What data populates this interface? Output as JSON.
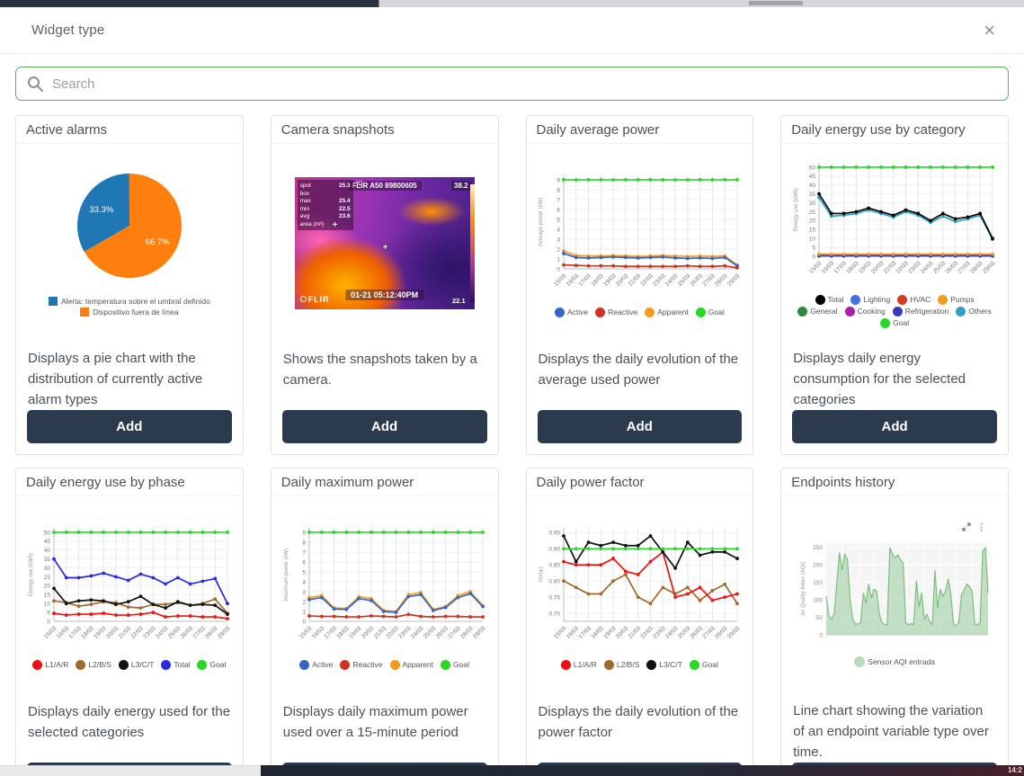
{
  "modal": {
    "title": "Widget type",
    "close_glyph": "×"
  },
  "search": {
    "placeholder": "Search"
  },
  "background": {
    "clock": "14:2"
  },
  "x_dates": [
    "15/03",
    "16/03",
    "17/03",
    "18/03",
    "19/03",
    "20/03",
    "21/03",
    "22/03",
    "23/03",
    "24/03",
    "25/03",
    "26/03",
    "27/03",
    "28/03",
    "29/03"
  ],
  "cards": [
    {
      "title": "Active alarms",
      "description": "Displays a pie chart with the distribution of currently active alarm types",
      "add_label": "Add",
      "chart": {
        "type": "pie",
        "rotation_deg": 240,
        "slices": [
          {
            "label": "Alerta: temperatura sobre el umbral definido",
            "value": 33.3,
            "pct_label": "33.3%",
            "color": "#1f77b4"
          },
          {
            "label": "Dispositivo fuera de línea",
            "value": 66.7,
            "pct_label": "66.7%",
            "color": "#ff7f0e"
          }
        ]
      }
    },
    {
      "title": "Camera snapshots",
      "description": "Shows the snapshots taken by a camera.",
      "add_label": "Add",
      "camera": {
        "header": "FLIR A50 89800605",
        "unit": "°C",
        "temp_top_right": "38.2",
        "temp_bottom_right": "22.1",
        "timestamp": "01-21 05:12:40PM",
        "brand": "FLIR",
        "panel": [
          [
            "spot",
            "25.3"
          ],
          [
            "box",
            ""
          ],
          [
            "max",
            "25.4"
          ],
          [
            "min",
            "22.5"
          ],
          [
            "avg",
            "23.6"
          ],
          [
            "area (m²)",
            ""
          ]
        ]
      }
    },
    {
      "title": "Daily average power",
      "description": "Displays the daily evolution of the average used power",
      "add_label": "Add",
      "chart": {
        "type": "line",
        "ylabel": "Average power (kW)",
        "ylim": [
          0,
          9.45
        ],
        "yticks": [
          0,
          1,
          2,
          3,
          4,
          5,
          6,
          7,
          8,
          9
        ],
        "ydec": 0,
        "series": [
          {
            "name": "Apparent",
            "color": "#f39c1f",
            "values": [
              1.8,
              1.35,
              1.3,
              1.3,
              1.35,
              1.3,
              1.25,
              1.3,
              1.35,
              1.3,
              1.25,
              1.3,
              1.25,
              1.3,
              0.4
            ]
          },
          {
            "name": "Active",
            "color": "#3465cd",
            "values": [
              1.55,
              1.15,
              1.1,
              1.15,
              1.2,
              1.15,
              1.1,
              1.15,
              1.2,
              1.1,
              1.05,
              1.1,
              1.05,
              1.15,
              0.3
            ]
          },
          {
            "name": "Reactive",
            "color": "#d0321e",
            "values": [
              0.4,
              0.35,
              0.3,
              0.3,
              0.3,
              0.25,
              0.25,
              0.25,
              0.25,
              0.25,
              0.3,
              0.25,
              0.25,
              0.3,
              0.1
            ]
          },
          {
            "name": "Goal",
            "color": "#28d828",
            "values": [
              9,
              9,
              9,
              9,
              9,
              9,
              9,
              9,
              9,
              9,
              9,
              9,
              9,
              9,
              9
            ]
          }
        ],
        "legend_order": [
          "Active",
          "Reactive",
          "Apparent",
          "Goal"
        ]
      }
    },
    {
      "title": "Daily energy use by category",
      "description": "Displays daily energy consumption for the selected categories",
      "add_label": "Add",
      "chart": {
        "type": "line",
        "ylabel": "Energy use (kWh)",
        "ylim": [
          0,
          52.5
        ],
        "yticks": [
          0,
          5,
          10,
          15,
          20,
          25,
          30,
          35,
          40,
          45,
          50
        ],
        "ydec": 0,
        "series": [
          {
            "name": "Cooking",
            "color": "#aa1faa",
            "values": [
              0.1,
              0.1,
              0.1,
              0.1,
              0.1,
              0.1,
              0.1,
              0.1,
              0.1,
              0.1,
              0.1,
              0.1,
              0.1,
              0.1,
              0.1
            ]
          },
          {
            "name": "General",
            "color": "#2c8a3c",
            "values": [
              0.15,
              0.15,
              0.15,
              0.15,
              0.15,
              0.15,
              0.15,
              0.15,
              0.15,
              0.15,
              0.15,
              0.15,
              0.15,
              0.15,
              0.15
            ]
          },
          {
            "name": "HVAC",
            "color": "#d93a20",
            "values": [
              0.2,
              0.2,
              0.2,
              0.2,
              0.2,
              0.2,
              0.2,
              0.2,
              0.2,
              0.2,
              0.2,
              0.2,
              0.2,
              0.2,
              0.2
            ]
          },
          {
            "name": "Lighting",
            "color": "#4472e0",
            "values": [
              0.3,
              0.3,
              0.3,
              0.3,
              0.3,
              0.3,
              0.3,
              0.3,
              0.3,
              0.3,
              0.3,
              0.3,
              0.3,
              0.3,
              0.3
            ]
          },
          {
            "name": "Refrigeration",
            "color": "#3a3ab8",
            "values": [
              0.5,
              0.5,
              0.5,
              0.5,
              0.5,
              0.5,
              0.5,
              0.5,
              0.5,
              0.5,
              0.5,
              0.5,
              0.5,
              0.5,
              0.5
            ]
          },
          {
            "name": "Pumps",
            "color": "#f39c1f",
            "values": [
              1.2,
              1.2,
              1.2,
              1.2,
              1.2,
              1.2,
              1.2,
              1.2,
              1.2,
              1.2,
              1.2,
              1.2,
              1.2,
              1.2,
              1.2
            ]
          },
          {
            "name": "Others",
            "color": "#2aa0c8",
            "values": [
              33,
              22.5,
              23,
              24,
              26,
              24,
              22,
              25,
              23,
              19,
              22.5,
              19.5,
              21,
              23,
              9.5
            ]
          },
          {
            "name": "Total",
            "color": "#000000",
            "values": [
              35,
              24,
              24,
              25,
              27,
              25,
              23,
              26,
              24,
              20,
              24,
              21,
              22,
              24,
              10
            ]
          },
          {
            "name": "Goal",
            "color": "#28d828",
            "values": [
              50,
              50,
              50,
              50,
              50,
              50,
              50,
              50,
              50,
              50,
              50,
              50,
              50,
              50,
              50
            ]
          }
        ],
        "legend_order": [
          "Total",
          "Lighting",
          "HVAC",
          "Pumps",
          "General",
          "Cooking",
          "Refrigeration",
          "Others",
          "Goal"
        ]
      }
    },
    {
      "title": "Daily energy use by phase",
      "description": "Displays daily energy used for the selected categories",
      "add_label": "Add",
      "chart": {
        "type": "line",
        "ylabel": "Energy use (kWh)",
        "ylim": [
          0,
          52.5
        ],
        "yticks": [
          0,
          5,
          10,
          15,
          20,
          25,
          30,
          35,
          40,
          45,
          50
        ],
        "ydec": 0,
        "series": [
          {
            "name": "L1/A/R",
            "color": "#ee1111",
            "values": [
              4.5,
              3.5,
              4,
              4,
              4.5,
              3.5,
              3.5,
              4,
              5,
              2.5,
              3,
              3,
              2.5,
              2.5,
              1.5
            ]
          },
          {
            "name": "L2/B/S",
            "color": "#a06a28",
            "values": [
              11.5,
              10.5,
              8.5,
              9.5,
              11,
              10.5,
              8,
              7.5,
              9.5,
              9.5,
              10.5,
              9,
              10,
              12.5,
              4.5
            ]
          },
          {
            "name": "L3/C/T",
            "color": "#111111",
            "values": [
              18.5,
              10,
              11.5,
              12,
              11.5,
              9.5,
              11,
              14,
              9.5,
              7.5,
              11,
              9,
              9.5,
              9,
              4
            ]
          },
          {
            "name": "Total",
            "color": "#2a2ae0",
            "values": [
              35,
              24.5,
              24.5,
              25.5,
              27,
              25,
              23,
              26.5,
              24.5,
              21,
              24.5,
              21,
              22.5,
              24,
              10
            ]
          },
          {
            "name": "Goal",
            "color": "#28d828",
            "values": [
              50,
              50,
              50,
              50,
              50,
              50,
              50,
              50,
              50,
              50,
              50,
              50,
              50,
              50,
              50
            ]
          }
        ],
        "legend_order": [
          "L1/A/R",
          "L2/B/S",
          "L3/C/T",
          "Total",
          "Goal"
        ]
      }
    },
    {
      "title": "Daily maximum power",
      "description": "Displays daily maximum power used over a 15-minute period",
      "add_label": "Add",
      "chart": {
        "type": "line",
        "ylabel": "Maximum power (kW)",
        "ylim": [
          0,
          9.45
        ],
        "yticks": [
          0,
          1,
          2,
          3,
          4,
          5,
          6,
          7,
          8,
          9
        ],
        "ydec": 0,
        "series": [
          {
            "name": "Apparent",
            "color": "#f39c1f",
            "values": [
              2.4,
              2.6,
              1.35,
              1.3,
              2.5,
              2.3,
              1.1,
              1.0,
              2.7,
              2.9,
              1.2,
              1.5,
              2.6,
              3.0,
              1.6
            ]
          },
          {
            "name": "Active",
            "color": "#3465cd",
            "values": [
              2.2,
              2.4,
              1.25,
              1.2,
              2.3,
              2.1,
              1.0,
              0.9,
              2.5,
              2.7,
              1.1,
              1.4,
              2.4,
              2.8,
              1.5
            ]
          },
          {
            "name": "Reactive",
            "color": "#d0321e",
            "values": [
              0.55,
              0.5,
              0.5,
              0.45,
              0.45,
              0.55,
              0.5,
              0.45,
              0.7,
              0.5,
              0.45,
              0.5,
              0.5,
              0.45,
              0.45
            ]
          },
          {
            "name": "Goal",
            "color": "#28d828",
            "values": [
              9,
              9,
              9,
              9,
              9,
              9,
              9,
              9,
              9,
              9,
              9,
              9,
              9,
              9,
              9
            ]
          }
        ],
        "legend_order": [
          "Active",
          "Reactive",
          "Apparent",
          "Goal"
        ]
      }
    },
    {
      "title": "Daily power factor",
      "description": "Displays the daily evolution of the power factor",
      "add_label": "Add",
      "chart": {
        "type": "line",
        "ylabel": "cos(φ)",
        "ylim": [
          0.675,
          0.965
        ],
        "yticks": [
          0.7,
          0.75,
          0.8,
          0.85,
          0.9,
          0.95
        ],
        "ydec": 2,
        "series": [
          {
            "name": "L2/B/S",
            "color": "#a06a28",
            "values": [
              0.8,
              0.78,
              0.76,
              0.76,
              0.8,
              0.82,
              0.75,
              0.73,
              0.78,
              0.76,
              0.78,
              0.74,
              0.77,
              0.79,
              0.73
            ]
          },
          {
            "name": "L1/A/R",
            "color": "#ee1111",
            "values": [
              0.86,
              0.85,
              0.85,
              0.85,
              0.87,
              0.83,
              0.82,
              0.86,
              0.89,
              0.75,
              0.76,
              0.78,
              0.74,
              0.75,
              0.76
            ]
          },
          {
            "name": "L3/C/T",
            "color": "#111111",
            "values": [
              0.94,
              0.86,
              0.92,
              0.91,
              0.92,
              0.91,
              0.91,
              0.94,
              0.89,
              0.84,
              0.92,
              0.88,
              0.89,
              0.89,
              0.87
            ]
          },
          {
            "name": "Goal",
            "color": "#28d828",
            "values": [
              0.9,
              0.9,
              0.9,
              0.9,
              0.9,
              0.9,
              0.9,
              0.9,
              0.9,
              0.9,
              0.9,
              0.9,
              0.9,
              0.9,
              0.9
            ]
          }
        ],
        "legend_order": [
          "L1/A/R",
          "L2/B/S",
          "L3/C/T",
          "Goal"
        ]
      }
    },
    {
      "title": "Endpoints history",
      "description": "Line chart showing the variation of an endpoint variable type over time.",
      "add_label": "Add",
      "chart": {
        "type": "area",
        "ylabel": "Air Quality Index (AQI)",
        "ylim": [
          0,
          262
        ],
        "yticks": [
          0,
          50,
          100,
          150,
          200,
          250
        ],
        "ydec": 0,
        "legend_label": "Sensor AQI entrada",
        "line_color": "#7cbf7e",
        "fill_color": "rgba(144,200,148,0.5)",
        "values": [
          110,
          55,
          45,
          60,
          150,
          235,
          185,
          230,
          215,
          100,
          45,
          30,
          32,
          35,
          120,
          90,
          145,
          105,
          130,
          125,
          60,
          35,
          30,
          28,
          250,
          230,
          220,
          228,
          215,
          205,
          35,
          28,
          32,
          30,
          155,
          80,
          120,
          45,
          58,
          38,
          30,
          185,
          75,
          130,
          110,
          125,
          160,
          115,
          30,
          26,
          35,
          115,
          128,
          145,
          138,
          125,
          30,
          28,
          35,
          240,
          248,
          120
        ]
      }
    }
  ]
}
